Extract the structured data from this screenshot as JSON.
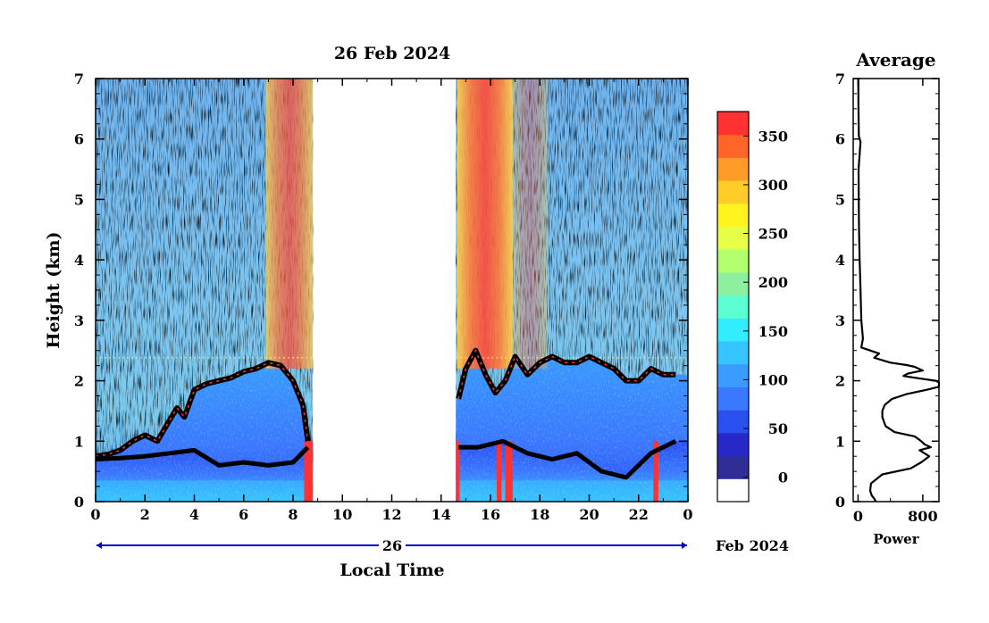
{
  "chart_data": [
    {
      "type": "heatmap",
      "title": "26 Feb 2024",
      "xlabel": "Local Time",
      "ylabel": "Height (km)",
      "x_ticks": [
        "0",
        "2",
        "4",
        "6",
        "8",
        "10",
        "12",
        "14",
        "16",
        "18",
        "20",
        "22",
        "0"
      ],
      "y_ticks": [
        "0",
        "1",
        "2",
        "3",
        "4",
        "5",
        "6",
        "7"
      ],
      "xlim": [
        0,
        24
      ],
      "ylim": [
        0,
        7
      ],
      "date_bar": {
        "day": "26",
        "month_year": "Feb 2024"
      },
      "data_gaps": [
        [
          8.8,
          14.6
        ]
      ],
      "colorbar": {
        "ticks": [
          "0",
          "50",
          "100",
          "150",
          "200",
          "250",
          "300",
          "350"
        ],
        "range": [
          -25,
          375
        ],
        "colors": [
          "#ffffff",
          "#2e2e96",
          "#2828c8",
          "#2a50f0",
          "#3a78ff",
          "#3a9cff",
          "#36c4ff",
          "#32ecff",
          "#5cffd2",
          "#8cf0a0",
          "#b4ff6e",
          "#e6ff46",
          "#fff41e",
          "#ffcc28",
          "#ff9c28",
          "#ff6428",
          "#ff3232"
        ]
      },
      "boundary_layer_top": [
        [
          0.0,
          0.75
        ],
        [
          0.5,
          0.78
        ],
        [
          1.0,
          0.85
        ],
        [
          1.5,
          1.0
        ],
        [
          2.0,
          1.1
        ],
        [
          2.5,
          1.0
        ],
        [
          3.0,
          1.35
        ],
        [
          3.3,
          1.55
        ],
        [
          3.6,
          1.4
        ],
        [
          4.0,
          1.85
        ],
        [
          4.5,
          1.95
        ],
        [
          5.0,
          2.0
        ],
        [
          5.5,
          2.05
        ],
        [
          6.0,
          2.15
        ],
        [
          6.5,
          2.2
        ],
        [
          7.0,
          2.3
        ],
        [
          7.5,
          2.25
        ],
        [
          8.0,
          2.0
        ],
        [
          8.4,
          1.6
        ],
        [
          8.6,
          1.0
        ],
        [
          14.7,
          1.7
        ],
        [
          15.0,
          2.2
        ],
        [
          15.4,
          2.5
        ],
        [
          15.8,
          2.1
        ],
        [
          16.2,
          1.8
        ],
        [
          16.6,
          2.0
        ],
        [
          17.0,
          2.4
        ],
        [
          17.5,
          2.1
        ],
        [
          18.0,
          2.3
        ],
        [
          18.5,
          2.4
        ],
        [
          19.0,
          2.3
        ],
        [
          19.5,
          2.3
        ],
        [
          20.0,
          2.4
        ],
        [
          20.5,
          2.3
        ],
        [
          21.0,
          2.2
        ],
        [
          21.5,
          2.0
        ],
        [
          22.0,
          2.0
        ],
        [
          22.5,
          2.2
        ],
        [
          23.0,
          2.1
        ],
        [
          23.5,
          2.1
        ]
      ],
      "mixed_layer_top": [
        [
          0.0,
          0.7
        ],
        [
          1.0,
          0.72
        ],
        [
          2.0,
          0.75
        ],
        [
          3.0,
          0.8
        ],
        [
          4.0,
          0.85
        ],
        [
          5.0,
          0.6
        ],
        [
          6.0,
          0.65
        ],
        [
          7.0,
          0.6
        ],
        [
          8.0,
          0.65
        ],
        [
          8.6,
          0.9
        ],
        [
          14.7,
          0.9
        ],
        [
          15.5,
          0.9
        ],
        [
          16.5,
          1.0
        ],
        [
          17.5,
          0.8
        ],
        [
          18.5,
          0.7
        ],
        [
          19.5,
          0.8
        ],
        [
          20.5,
          0.5
        ],
        [
          21.5,
          0.4
        ],
        [
          22.5,
          0.8
        ],
        [
          23.5,
          1.0
        ]
      ]
    },
    {
      "type": "line",
      "title": "Average",
      "xlabel": "Power",
      "x_ticks": [
        "0",
        "800"
      ],
      "y_ticks": [
        "0",
        "1",
        "2",
        "3",
        "4",
        "5",
        "6",
        "7"
      ],
      "xlim": [
        -60,
        1000
      ],
      "ylim": [
        0,
        7
      ],
      "profile": [
        [
          220,
          0.0
        ],
        [
          200,
          0.05
        ],
        [
          170,
          0.1
        ],
        [
          150,
          0.18
        ],
        [
          160,
          0.3
        ],
        [
          300,
          0.45
        ],
        [
          650,
          0.55
        ],
        [
          780,
          0.65
        ],
        [
          880,
          0.75
        ],
        [
          820,
          0.8
        ],
        [
          760,
          0.85
        ],
        [
          900,
          0.9
        ],
        [
          820,
          0.95
        ],
        [
          780,
          1.0
        ],
        [
          700,
          1.08
        ],
        [
          450,
          1.15
        ],
        [
          340,
          1.25
        ],
        [
          300,
          1.4
        ],
        [
          300,
          1.5
        ],
        [
          330,
          1.6
        ],
        [
          420,
          1.7
        ],
        [
          600,
          1.78
        ],
        [
          850,
          1.85
        ],
        [
          1000,
          1.9
        ],
        [
          1000,
          1.97
        ],
        [
          960,
          2.0
        ],
        [
          700,
          2.05
        ],
        [
          560,
          2.08
        ],
        [
          620,
          2.12
        ],
        [
          800,
          2.17
        ],
        [
          700,
          2.23
        ],
        [
          600,
          2.26
        ],
        [
          400,
          2.3
        ],
        [
          200,
          2.38
        ],
        [
          260,
          2.45
        ],
        [
          150,
          2.5
        ],
        [
          40,
          2.55
        ],
        [
          60,
          2.7
        ],
        [
          40,
          3.0
        ],
        [
          30,
          3.5
        ],
        [
          20,
          4.0
        ],
        [
          12,
          4.5
        ],
        [
          8,
          5.0
        ],
        [
          6,
          5.5
        ],
        [
          30,
          5.95
        ],
        [
          10,
          6.05
        ],
        [
          5,
          6.5
        ],
        [
          3,
          7.0
        ]
      ]
    }
  ]
}
